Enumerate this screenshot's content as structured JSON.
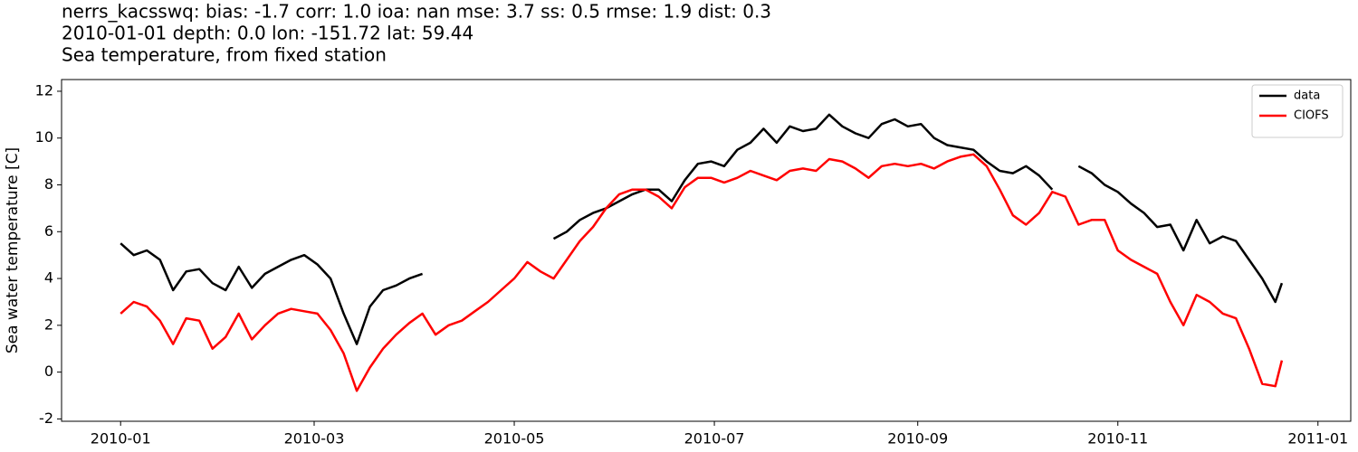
{
  "chart_data": {
    "type": "line",
    "title_lines": [
      "nerrs_kacsswq: bias: -1.7  corr: 1.0  ioa: nan  mse: 3.7  ss: 0.5  rmse: 1.9  dist: 0.3",
      "2010-01-01 depth: 0.0 lon: -151.72 lat: 59.44",
      "Sea temperature, from fixed station"
    ],
    "ylabel": "Sea water temperature [C]",
    "x": [
      "2010-01-01",
      "2010-01-05",
      "2010-01-09",
      "2010-01-13",
      "2010-01-17",
      "2010-01-21",
      "2010-01-25",
      "2010-01-29",
      "2010-02-02",
      "2010-02-06",
      "2010-02-10",
      "2010-02-14",
      "2010-02-18",
      "2010-02-22",
      "2010-02-26",
      "2010-03-02",
      "2010-03-06",
      "2010-03-10",
      "2010-03-14",
      "2010-03-18",
      "2010-03-22",
      "2010-03-26",
      "2010-03-30",
      "2010-04-03",
      "2010-04-07",
      "2010-04-11",
      "2010-04-15",
      "2010-04-19",
      "2010-04-23",
      "2010-04-27",
      "2010-05-01",
      "2010-05-05",
      "2010-05-09",
      "2010-05-13",
      "2010-05-17",
      "2010-05-21",
      "2010-05-25",
      "2010-05-29",
      "2010-06-02",
      "2010-06-06",
      "2010-06-10",
      "2010-06-14",
      "2010-06-18",
      "2010-06-22",
      "2010-06-26",
      "2010-06-30",
      "2010-07-04",
      "2010-07-08",
      "2010-07-12",
      "2010-07-16",
      "2010-07-20",
      "2010-07-24",
      "2010-07-28",
      "2010-08-01",
      "2010-08-05",
      "2010-08-09",
      "2010-08-13",
      "2010-08-17",
      "2010-08-21",
      "2010-08-25",
      "2010-08-29",
      "2010-09-02",
      "2010-09-06",
      "2010-09-10",
      "2010-09-14",
      "2010-09-18",
      "2010-09-22",
      "2010-09-26",
      "2010-09-30",
      "2010-10-04",
      "2010-10-08",
      "2010-10-12",
      "2010-10-16",
      "2010-10-20",
      "2010-10-24",
      "2010-10-28",
      "2010-11-01",
      "2010-11-05",
      "2010-11-09",
      "2010-11-13",
      "2010-11-17",
      "2010-11-21",
      "2010-11-25",
      "2010-11-29",
      "2010-12-03",
      "2010-12-07",
      "2010-12-11",
      "2010-12-15",
      "2010-12-19",
      "2010-12-21"
    ],
    "series": [
      {
        "name": "data",
        "color": "#000000",
        "values": [
          5.5,
          5.0,
          5.2,
          4.8,
          3.5,
          4.3,
          4.4,
          3.8,
          3.5,
          4.5,
          3.6,
          4.2,
          4.5,
          4.8,
          5.0,
          4.6,
          4.0,
          2.5,
          1.2,
          2.8,
          3.5,
          3.7,
          4.0,
          4.2,
          null,
          null,
          null,
          null,
          null,
          null,
          null,
          null,
          null,
          5.7,
          6.0,
          6.5,
          6.8,
          7.0,
          7.3,
          7.6,
          7.8,
          7.8,
          7.3,
          8.2,
          8.9,
          9.0,
          8.8,
          9.5,
          9.8,
          10.4,
          9.8,
          10.5,
          10.3,
          10.4,
          11.0,
          10.5,
          10.2,
          10.0,
          10.6,
          10.8,
          10.5,
          10.6,
          10.0,
          9.7,
          9.6,
          9.5,
          9.0,
          8.6,
          8.5,
          8.8,
          8.4,
          7.8,
          null,
          8.8,
          8.5,
          8.0,
          7.7,
          7.2,
          6.8,
          6.2,
          6.3,
          5.2,
          6.5,
          5.5,
          5.8,
          5.6,
          4.8,
          4.0,
          3.0,
          3.8
        ]
      },
      {
        "name": "CIOFS",
        "color": "#ff0000",
        "values": [
          2.5,
          3.0,
          2.8,
          2.2,
          1.2,
          2.3,
          2.2,
          1.0,
          1.5,
          2.5,
          1.4,
          2.0,
          2.5,
          2.7,
          2.6,
          2.5,
          1.8,
          0.8,
          -0.8,
          0.2,
          1.0,
          1.6,
          2.1,
          2.5,
          1.6,
          2.0,
          2.2,
          2.6,
          3.0,
          3.5,
          4.0,
          4.7,
          4.3,
          4.0,
          4.8,
          5.6,
          6.2,
          7.0,
          7.6,
          7.8,
          7.8,
          7.5,
          7.0,
          7.9,
          8.3,
          8.3,
          8.1,
          8.3,
          8.6,
          8.4,
          8.2,
          8.6,
          8.7,
          8.6,
          9.1,
          9.0,
          8.7,
          8.3,
          8.8,
          8.9,
          8.8,
          8.9,
          8.7,
          9.0,
          9.2,
          9.3,
          8.8,
          7.8,
          6.7,
          6.3,
          6.8,
          7.7,
          7.5,
          6.3,
          6.5,
          6.5,
          5.2,
          4.8,
          4.5,
          4.2,
          3.0,
          2.0,
          3.3,
          3.0,
          2.5,
          2.3,
          1.0,
          -0.5,
          -0.6,
          0.5
        ]
      }
    ],
    "xlim": [
      "2009-12-14",
      "2011-01-11"
    ],
    "xticks": [
      {
        "value": "2010-01-01",
        "label": "2010-01"
      },
      {
        "value": "2010-03-01",
        "label": "2010-03"
      },
      {
        "value": "2010-05-01",
        "label": "2010-05"
      },
      {
        "value": "2010-07-01",
        "label": "2010-07"
      },
      {
        "value": "2010-09-01",
        "label": "2010-09"
      },
      {
        "value": "2010-11-01",
        "label": "2010-11"
      },
      {
        "value": "2011-01-01",
        "label": "2011-01"
      }
    ],
    "ylim": [
      -2.1,
      12.5
    ],
    "yticks": [
      -2,
      0,
      2,
      4,
      6,
      8,
      10,
      12
    ],
    "legend": "upper right"
  }
}
